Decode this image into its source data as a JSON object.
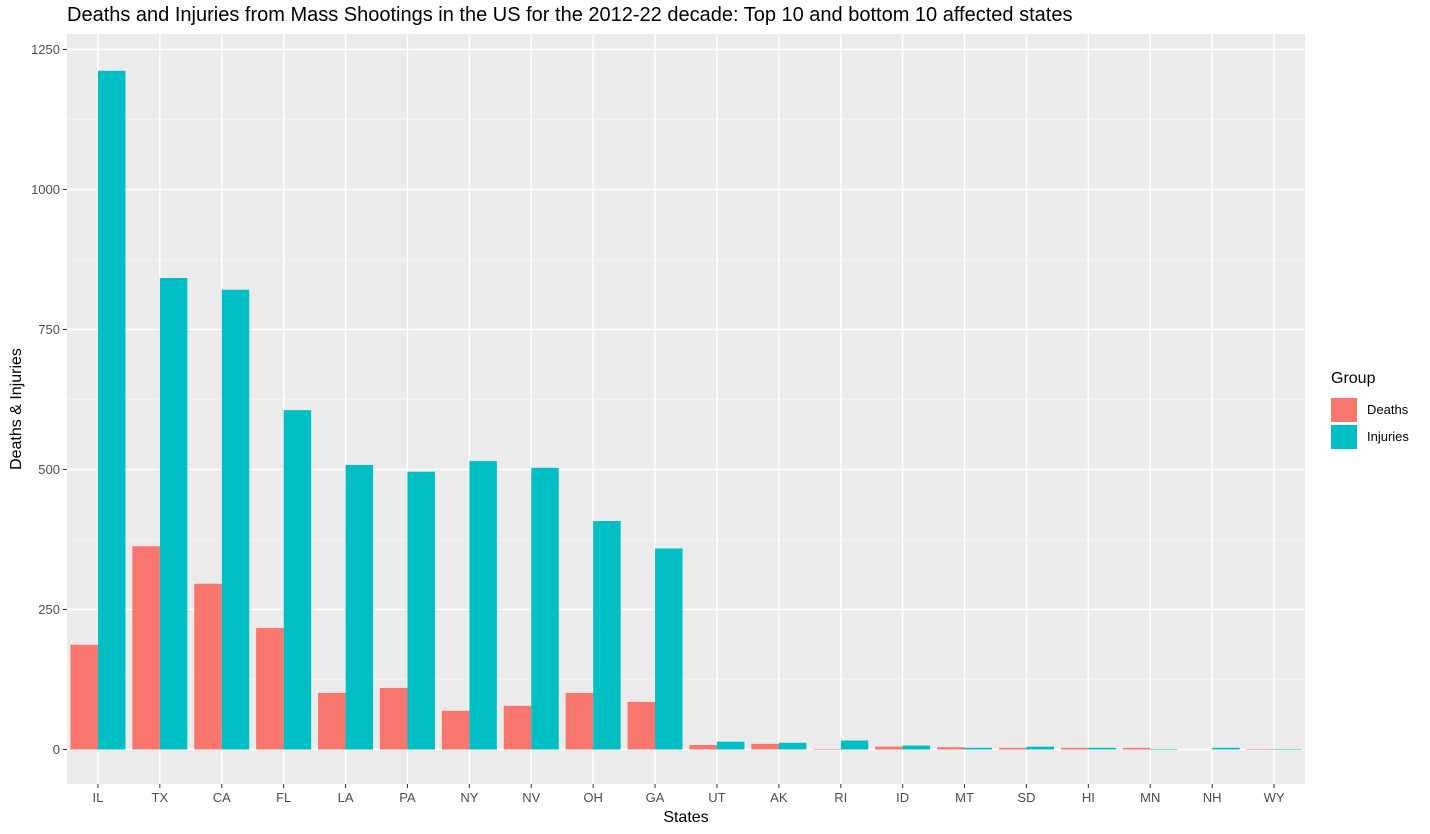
{
  "chart_data": {
    "type": "bar",
    "title": "Deaths and Injuries from Mass Shootings in the US for the 2012-22 decade: Top 10 and bottom 10 affected states",
    "xlabel": "States",
    "ylabel": "Deaths & Injuries",
    "ylim": [
      0,
      1250
    ],
    "yticks": [
      0,
      250,
      500,
      750,
      1000,
      1250
    ],
    "categories": [
      "IL",
      "TX",
      "CA",
      "FL",
      "LA",
      "PA",
      "NY",
      "NV",
      "OH",
      "GA",
      "UT",
      "AK",
      "RI",
      "ID",
      "MT",
      "SD",
      "HI",
      "MN",
      "NH",
      "WY"
    ],
    "series": [
      {
        "name": "Deaths",
        "color": "#F8766D",
        "values": [
          187,
          363,
          296,
          217,
          101,
          110,
          69,
          78,
          101,
          85,
          8,
          10,
          1,
          5,
          4,
          3,
          3,
          3,
          0,
          1
        ]
      },
      {
        "name": "Injuries",
        "color": "#00BFC4",
        "values": [
          1212,
          842,
          821,
          606,
          508,
          496,
          515,
          503,
          408,
          359,
          14,
          12,
          16,
          7,
          3,
          5,
          3,
          1,
          3,
          1
        ]
      }
    ],
    "grid": true,
    "legend": {
      "title": "Group",
      "position": "right"
    }
  }
}
